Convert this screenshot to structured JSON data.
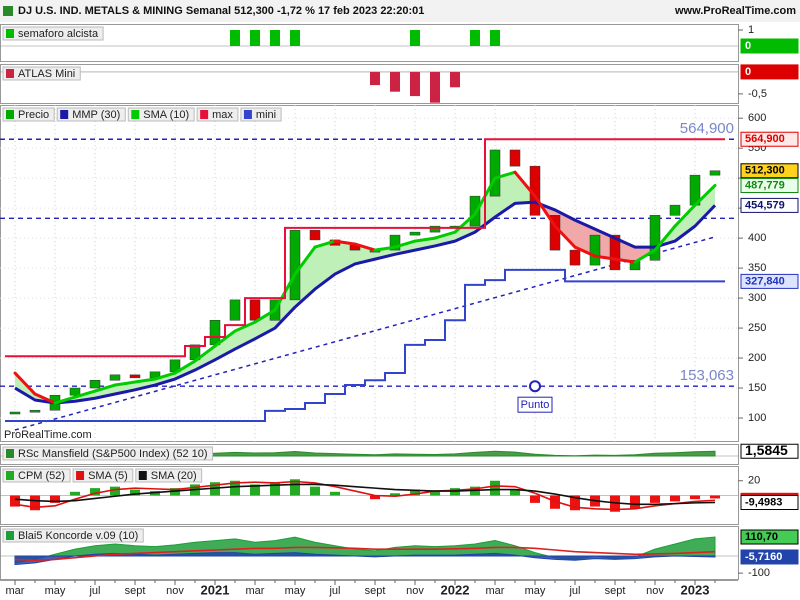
{
  "header": {
    "title": "DJ U.S. IND. METALS & MINING Semanal 512,300 -1,72 % 17 feb 2023 22:20:01",
    "site": "www.ProRealTime.com"
  },
  "watermark": "ProRealTime.com",
  "chart_data": [
    {
      "type": "bar",
      "title": "semaforo alcista",
      "series": [
        {
          "color": "#00bb00",
          "values": [
            0,
            0,
            0,
            0,
            0,
            0,
            0,
            0,
            0,
            0,
            0,
            1,
            1,
            1,
            1,
            0,
            0,
            0,
            0,
            0,
            1,
            0,
            0,
            1,
            1,
            0,
            0,
            0,
            0,
            0,
            0,
            0,
            0,
            0,
            0,
            0
          ]
        }
      ],
      "ylim": [
        -1,
        1.375
      ],
      "yticks": [
        1
      ],
      "current": [
        {
          "value": 0,
          "color": "#ffffff",
          "fill": "#00bb00"
        }
      ]
    },
    {
      "type": "bar",
      "title": "ATLAS Mini",
      "series": [
        {
          "color": "#cc2244",
          "values": [
            0,
            0,
            0,
            0,
            0,
            0,
            0,
            0,
            0,
            0,
            0,
            0,
            0,
            0,
            0,
            0,
            0,
            0,
            -0.3,
            -0.45,
            -0.55,
            -0.7,
            -0.35,
            0,
            0,
            0,
            0,
            0,
            0,
            0,
            0,
            0,
            0,
            0,
            0,
            0
          ]
        }
      ],
      "ylim": [
        -0.73,
        0.18
      ],
      "yticks": [
        {
          "value": -0.5,
          "label": "-0,5"
        }
      ],
      "current": [
        {
          "value": 0,
          "color": "#ffffff",
          "fill": "#dd0000"
        }
      ]
    },
    {
      "type": "candlestick",
      "categories": [
        "mar",
        null,
        "may",
        null,
        "jul",
        null,
        "sept",
        null,
        "nov",
        null,
        "2021",
        null,
        "mar",
        null,
        "may",
        null,
        "jul",
        null,
        "sept",
        null,
        "nov",
        null,
        "2022",
        null,
        "mar",
        null,
        "may",
        null,
        "jul",
        null,
        "sept",
        null,
        "nov",
        null,
        "2023",
        null
      ],
      "series": [
        {
          "name": "Precio",
          "style": "candle",
          "color": "#00aa00",
          "down_color": "#dd0000",
          "values": [
            110,
            113,
            138,
            150,
            163,
            172,
            167,
            177,
            197,
            222,
            263,
            297,
            263,
            297,
            413,
            397,
            388,
            380,
            380,
            405,
            410,
            420,
            420,
            470,
            547,
            520,
            438,
            380,
            355,
            405,
            347,
            363,
            438,
            455,
            505,
            512.3
          ]
        },
        {
          "name": "MMP (30)",
          "style": "line",
          "color": "#1a1aa6",
          "values": [
            150,
            130,
            125,
            128,
            133,
            140,
            147,
            155,
            165,
            180,
            197,
            215,
            232,
            250,
            285,
            315,
            340,
            357,
            365,
            373,
            380,
            387,
            395,
            410,
            435,
            458,
            460,
            447,
            430,
            415,
            400,
            385,
            385,
            395,
            420,
            454.579
          ]
        },
        {
          "name": "SMA (10)",
          "style": "line",
          "color": "#00cc00",
          "down_color": "#ee1111",
          "values": [
            175,
            140,
            125,
            135,
            145,
            155,
            160,
            165,
            175,
            195,
            220,
            245,
            260,
            280,
            340,
            385,
            395,
            390,
            380,
            385,
            395,
            400,
            410,
            440,
            500,
            510,
            470,
            420,
            385,
            370,
            365,
            360,
            380,
            420,
            455,
            487.779
          ]
        },
        {
          "name": "max",
          "style": "step",
          "color": "#e8103a",
          "values": [
            203,
            203,
            203,
            203,
            203,
            203,
            203,
            203,
            203,
            220,
            235,
            255,
            300,
            300,
            417,
            417,
            417,
            417,
            417,
            417,
            417,
            417,
            417,
            417,
            564.9,
            564.9,
            564.9,
            564.9,
            564.9,
            564.9,
            564.9,
            564.9,
            564.9,
            564.9,
            564.9,
            564.9
          ]
        },
        {
          "name": "mini",
          "style": "step",
          "color": "#3344cc",
          "values": [
            95,
            95,
            95,
            95,
            95,
            95,
            95,
            95,
            95,
            95,
            95,
            95,
            95,
            112,
            115,
            125,
            140,
            155,
            163,
            175,
            222,
            230,
            263,
            322,
            330,
            347,
            347,
            347,
            327.84,
            327.84,
            327.84,
            327.84,
            327.84,
            327.84,
            327.84,
            327.84
          ]
        }
      ],
      "band_fill": true,
      "ylim": [
        60,
        622
      ],
      "yticks": [
        600,
        550,
        500,
        450,
        400,
        350,
        300,
        250,
        200,
        150,
        100
      ],
      "grid": true,
      "levels": [
        {
          "value": 564.9,
          "label": "564,900"
        },
        {
          "value": 433
        },
        {
          "value": 153.063,
          "label": "153,063"
        }
      ],
      "trendline": [
        80,
        402
      ],
      "annotation": "Punto",
      "current": [
        {
          "value": 564.9,
          "label": "564,900",
          "color": "#dd0000",
          "fill": "#ffe8e8"
        },
        {
          "value": 512.3,
          "label": "512,300",
          "color": "#000000",
          "fill": "#ffd21e"
        },
        {
          "value": 487.779,
          "label": "487,779",
          "color": "#118811",
          "fill": "#eaffea"
        },
        {
          "value": 454.579,
          "label": "454,579",
          "color": "#11116e",
          "fill": "#ffffff"
        },
        {
          "value": 327.84,
          "label": "327,840",
          "color": "#2233bb",
          "fill": "#dde4ff"
        }
      ]
    },
    {
      "type": "area",
      "title": "RSc Mansfield (S&P500 Index) (52 10)",
      "series": [
        {
          "style": "area",
          "color": "#2a8a2a",
          "values": [
            -0.5,
            -0.8,
            -0.3,
            0.2,
            0.4,
            0.3,
            0.2,
            0.1,
            0.3,
            0.6,
            0.9,
            1.2,
            1.0,
            1.1,
            1.5,
            1.0,
            0.8,
            0.6,
            0.4,
            0.7,
            0.6,
            0.5,
            0.7,
            1.2,
            1.6,
            1.3,
            0.6,
            0.2,
            0.1,
            0.3,
            0.2,
            0.4,
            0.9,
            1.1,
            1.4,
            1.5845
          ]
        }
      ],
      "ylim": [
        -3,
        4
      ],
      "current": [
        {
          "value": 1.5845,
          "label": "1,5845",
          "color": "#000000",
          "fill": "#ffffff"
        }
      ]
    },
    {
      "type": "bar",
      "series": [
        {
          "name": "CPM (52)",
          "style": "bar",
          "color": "#22aa22",
          "down_color": "#ee1111",
          "values": [
            -15,
            -20,
            -10,
            5,
            10,
            12,
            8,
            6,
            10,
            15,
            18,
            20,
            15,
            18,
            22,
            12,
            5,
            0,
            -5,
            3,
            8,
            5,
            10,
            12,
            20,
            8,
            -10,
            -18,
            -20,
            -15,
            -22,
            -18,
            -10,
            -8,
            -5,
            -4
          ]
        },
        {
          "name": "SMA (5)",
          "style": "line",
          "color": "#dd1111",
          "values": [
            -12,
            -16,
            -14,
            -5,
            3,
            8,
            10,
            9,
            8,
            11,
            14,
            17,
            18,
            17,
            19,
            17,
            12,
            6,
            0,
            -1,
            2,
            6,
            7,
            9,
            13,
            12,
            3,
            -8,
            -16,
            -18,
            -19,
            -18,
            -14,
            -11,
            -8,
            -6.5212
          ]
        },
        {
          "name": "SMA (20)",
          "style": "line",
          "color": "#111111",
          "values": [
            -5,
            -7,
            -8,
            -7,
            -4,
            -1,
            2,
            4,
            6,
            8,
            10,
            12,
            13,
            14,
            15,
            15,
            14,
            12,
            10,
            8,
            7,
            6,
            6,
            7,
            8,
            8,
            6,
            2,
            -3,
            -7,
            -10,
            -12,
            -12,
            -11,
            -10,
            -9.4983
          ]
        }
      ],
      "ylim": [
        -40,
        40
      ],
      "yticks": [
        20
      ],
      "current": [
        {
          "value": -6.5212,
          "label": "-6,5212",
          "color": "#ffffff",
          "fill": "#dd1111"
        },
        {
          "value": -9.4983,
          "label": "-9,4983",
          "color": "#000000",
          "fill": "#ffffff"
        }
      ]
    },
    {
      "type": "area",
      "title": "Blai5 Koncorde v.09 (10)",
      "series": [
        {
          "style": "area",
          "color": "#1e9e3a",
          "values": [
            -40,
            -20,
            10,
            40,
            60,
            70,
            60,
            55,
            65,
            80,
            90,
            100,
            80,
            90,
            110,
            80,
            60,
            40,
            30,
            50,
            60,
            55,
            60,
            70,
            90,
            60,
            20,
            -10,
            -20,
            0,
            -15,
            -5,
            40,
            70,
            100,
            110.7
          ]
        },
        {
          "style": "area",
          "color": "#2244aa",
          "values": [
            -50,
            -40,
            -20,
            0,
            10,
            15,
            10,
            5,
            10,
            15,
            20,
            20,
            10,
            15,
            20,
            10,
            5,
            0,
            -5,
            0,
            5,
            5,
            5,
            10,
            15,
            5,
            -10,
            -20,
            -25,
            -15,
            -20,
            -15,
            -5,
            0,
            -3,
            -5.716
          ]
        },
        {
          "style": "line",
          "color": "#dd2222",
          "values": [
            -20,
            -25,
            -20,
            -10,
            0,
            10,
            15,
            20,
            25,
            30,
            35,
            40,
            45,
            45,
            50,
            50,
            48,
            45,
            40,
            40,
            40,
            40,
            42,
            45,
            50,
            50,
            45,
            35,
            25,
            20,
            15,
            10,
            12,
            15,
            20,
            25
          ]
        }
      ],
      "ylim": [
        -140,
        175
      ],
      "yticks": [
        -100
      ],
      "current": [
        {
          "value": 110.7,
          "label": "110,70",
          "color": "#000000",
          "fill": "#44cc55"
        },
        {
          "value": -5.716,
          "label": "-5,7160",
          "color": "#ffffff",
          "fill": "#2244aa"
        }
      ]
    }
  ]
}
